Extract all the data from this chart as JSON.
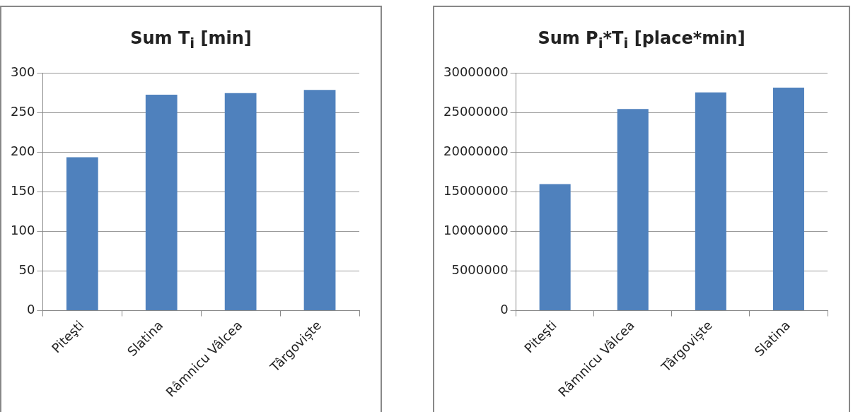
{
  "chart_data": [
    {
      "type": "bar",
      "title": "Sum T$_{i}$ [min]",
      "categories": [
        "Piteşti",
        "Slatina",
        "Râmnicu Vâlcea",
        "Târgoviște"
      ],
      "values": [
        194,
        273,
        275,
        279
      ],
      "color": "#4f81bd",
      "ylim": [
        0,
        300
      ],
      "yticks": [
        0,
        50,
        100,
        150,
        200,
        250,
        300
      ],
      "grid": "y"
    },
    {
      "type": "bar",
      "title": "Sum P$_{i}$*T$_{i}$ [place*min]",
      "categories": [
        "Piteşti",
        "Râmnicu Vâlcea",
        "Târgoviște",
        "Slatina"
      ],
      "values": [
        16000000,
        25500000,
        27600000,
        28200000
      ],
      "color": "#4f81bd",
      "ylim": [
        0,
        30000000
      ],
      "yticks": [
        0,
        5000000,
        10000000,
        15000000,
        20000000,
        25000000,
        30000000
      ],
      "grid": "y"
    }
  ]
}
